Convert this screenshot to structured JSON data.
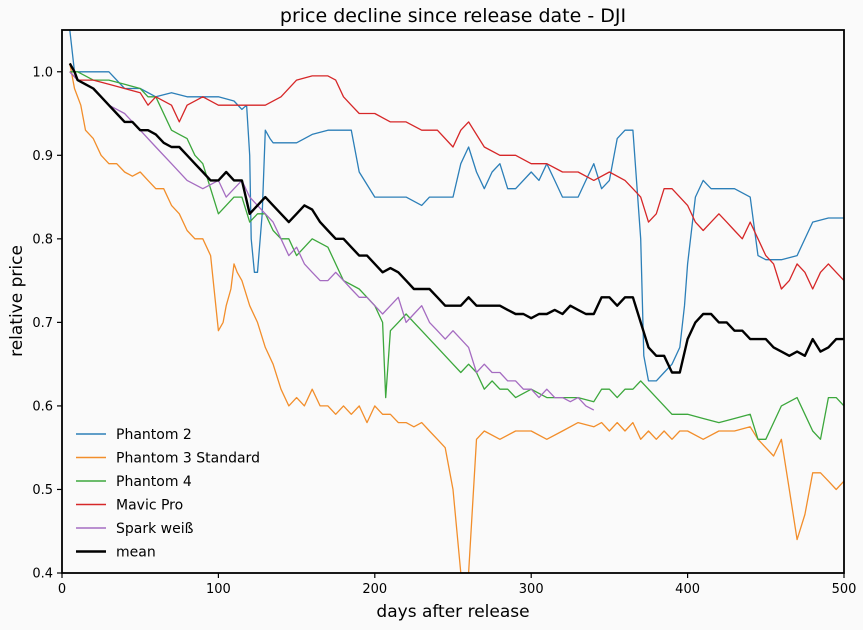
{
  "chart_data": {
    "type": "line",
    "title": "price decline since release date - DJI",
    "xlabel": "days after release",
    "ylabel": "relative price",
    "xlim": [
      0,
      500
    ],
    "ylim": [
      0.4,
      1.05
    ],
    "xticks": [
      "0",
      "100",
      "200",
      "300",
      "400",
      "500"
    ],
    "yticks": [
      "0.4",
      "0.5",
      "0.6",
      "0.7",
      "0.8",
      "0.9",
      "1.0"
    ],
    "grid": false,
    "legend_position": "bottom-left",
    "series": [
      {
        "name": "Phantom 2",
        "color": "#2c7fb8",
        "x": [
          5,
          8,
          12,
          30,
          40,
          50,
          60,
          70,
          80,
          100,
          110,
          115,
          118,
          120,
          121,
          123,
          125,
          128,
          130,
          133,
          135,
          140,
          150,
          160,
          170,
          180,
          185,
          190,
          200,
          210,
          220,
          230,
          235,
          240,
          250,
          255,
          260,
          265,
          270,
          275,
          280,
          285,
          290,
          300,
          305,
          310,
          315,
          320,
          330,
          335,
          340,
          345,
          350,
          355,
          360,
          365,
          370,
          372,
          375,
          380,
          385,
          390,
          395,
          398,
          400,
          405,
          410,
          415,
          420,
          425,
          430,
          440,
          445,
          450,
          460,
          470,
          480,
          490,
          500
        ],
        "y": [
          1.05,
          1.0,
          1.0,
          1.0,
          0.98,
          0.98,
          0.97,
          0.975,
          0.97,
          0.97,
          0.965,
          0.955,
          0.96,
          0.9,
          0.8,
          0.76,
          0.76,
          0.83,
          0.93,
          0.92,
          0.915,
          0.915,
          0.915,
          0.925,
          0.93,
          0.93,
          0.93,
          0.88,
          0.85,
          0.85,
          0.85,
          0.84,
          0.85,
          0.85,
          0.85,
          0.89,
          0.91,
          0.88,
          0.86,
          0.88,
          0.89,
          0.86,
          0.86,
          0.88,
          0.87,
          0.89,
          0.87,
          0.85,
          0.85,
          0.87,
          0.89,
          0.86,
          0.87,
          0.92,
          0.93,
          0.93,
          0.8,
          0.66,
          0.63,
          0.63,
          0.64,
          0.65,
          0.67,
          0.72,
          0.77,
          0.85,
          0.87,
          0.86,
          0.86,
          0.86,
          0.86,
          0.85,
          0.78,
          0.775,
          0.775,
          0.78,
          0.82,
          0.825,
          0.825
        ]
      },
      {
        "name": "Phantom 3 Standard",
        "color": "#f28e2b",
        "x": [
          5,
          8,
          12,
          15,
          20,
          25,
          30,
          35,
          40,
          45,
          50,
          55,
          60,
          65,
          70,
          75,
          80,
          85,
          90,
          95,
          100,
          103,
          105,
          108,
          110,
          112,
          115,
          120,
          125,
          130,
          135,
          140,
          145,
          150,
          155,
          160,
          165,
          170,
          175,
          180,
          185,
          190,
          195,
          200,
          205,
          210,
          215,
          220,
          225,
          230,
          235,
          240,
          245,
          250,
          255,
          258,
          260,
          265,
          270,
          280,
          290,
          300,
          310,
          320,
          330,
          340,
          345,
          350,
          355,
          360,
          365,
          370,
          375,
          380,
          385,
          390,
          395,
          400,
          410,
          420,
          430,
          440,
          445,
          450,
          455,
          460,
          465,
          470,
          475,
          480,
          485,
          490,
          495,
          500
        ],
        "y": [
          1.01,
          0.98,
          0.96,
          0.93,
          0.92,
          0.9,
          0.89,
          0.89,
          0.88,
          0.875,
          0.88,
          0.87,
          0.86,
          0.86,
          0.84,
          0.83,
          0.81,
          0.8,
          0.8,
          0.78,
          0.69,
          0.7,
          0.72,
          0.74,
          0.77,
          0.76,
          0.75,
          0.72,
          0.7,
          0.67,
          0.65,
          0.62,
          0.6,
          0.61,
          0.6,
          0.62,
          0.6,
          0.6,
          0.59,
          0.6,
          0.59,
          0.6,
          0.58,
          0.6,
          0.59,
          0.59,
          0.58,
          0.58,
          0.575,
          0.58,
          0.57,
          0.56,
          0.55,
          0.5,
          0.4,
          0.38,
          0.4,
          0.56,
          0.57,
          0.56,
          0.57,
          0.57,
          0.56,
          0.57,
          0.58,
          0.575,
          0.58,
          0.57,
          0.58,
          0.57,
          0.58,
          0.56,
          0.57,
          0.56,
          0.57,
          0.56,
          0.57,
          0.57,
          0.56,
          0.57,
          0.57,
          0.575,
          0.56,
          0.55,
          0.54,
          0.56,
          0.5,
          0.44,
          0.47,
          0.52,
          0.52,
          0.51,
          0.5,
          0.51
        ]
      },
      {
        "name": "Phantom 4",
        "color": "#3ca73c",
        "x": [
          5,
          10,
          20,
          30,
          40,
          50,
          55,
          60,
          70,
          75,
          80,
          85,
          90,
          95,
          100,
          105,
          110,
          115,
          120,
          125,
          130,
          135,
          140,
          145,
          150,
          160,
          170,
          180,
          190,
          195,
          200,
          205,
          207,
          210,
          215,
          220,
          225,
          230,
          235,
          240,
          245,
          250,
          255,
          260,
          265,
          270,
          275,
          280,
          285,
          290,
          300,
          310,
          320,
          330,
          340,
          345,
          350,
          355,
          360,
          365,
          370,
          380,
          390,
          400,
          410,
          420,
          430,
          440,
          445,
          450,
          455,
          460,
          470,
          475,
          480,
          485,
          490,
          495,
          500
        ],
        "y": [
          1.0,
          1.0,
          0.99,
          0.99,
          0.985,
          0.98,
          0.97,
          0.97,
          0.93,
          0.925,
          0.92,
          0.9,
          0.89,
          0.86,
          0.83,
          0.84,
          0.85,
          0.85,
          0.82,
          0.83,
          0.83,
          0.81,
          0.8,
          0.8,
          0.78,
          0.8,
          0.79,
          0.75,
          0.74,
          0.73,
          0.72,
          0.7,
          0.61,
          0.69,
          0.7,
          0.71,
          0.7,
          0.69,
          0.68,
          0.67,
          0.66,
          0.65,
          0.64,
          0.65,
          0.64,
          0.62,
          0.63,
          0.62,
          0.62,
          0.61,
          0.62,
          0.61,
          0.61,
          0.61,
          0.605,
          0.62,
          0.62,
          0.61,
          0.62,
          0.62,
          0.63,
          0.61,
          0.59,
          0.59,
          0.585,
          0.58,
          0.585,
          0.59,
          0.56,
          0.56,
          0.58,
          0.6,
          0.61,
          0.59,
          0.57,
          0.56,
          0.61,
          0.61,
          0.6
        ]
      },
      {
        "name": "Mavic Pro",
        "color": "#d62728",
        "x": [
          5,
          10,
          20,
          30,
          40,
          50,
          55,
          60,
          70,
          75,
          80,
          90,
          100,
          110,
          120,
          130,
          140,
          150,
          160,
          170,
          175,
          180,
          185,
          190,
          200,
          210,
          220,
          230,
          240,
          250,
          255,
          260,
          270,
          280,
          290,
          300,
          310,
          320,
          330,
          340,
          350,
          360,
          365,
          370,
          375,
          380,
          385,
          390,
          395,
          400,
          405,
          410,
          415,
          420,
          425,
          430,
          435,
          440,
          445,
          450,
          455,
          460,
          465,
          470,
          475,
          480,
          485,
          490,
          495,
          500
        ],
        "y": [
          1.0,
          0.99,
          0.99,
          0.985,
          0.98,
          0.975,
          0.96,
          0.97,
          0.96,
          0.94,
          0.96,
          0.97,
          0.96,
          0.96,
          0.96,
          0.96,
          0.97,
          0.99,
          0.995,
          0.995,
          0.99,
          0.97,
          0.96,
          0.95,
          0.95,
          0.94,
          0.94,
          0.93,
          0.93,
          0.91,
          0.93,
          0.94,
          0.91,
          0.9,
          0.9,
          0.89,
          0.89,
          0.88,
          0.88,
          0.87,
          0.88,
          0.87,
          0.86,
          0.85,
          0.82,
          0.83,
          0.86,
          0.86,
          0.85,
          0.84,
          0.82,
          0.81,
          0.82,
          0.83,
          0.82,
          0.81,
          0.8,
          0.82,
          0.8,
          0.78,
          0.77,
          0.74,
          0.75,
          0.77,
          0.76,
          0.74,
          0.76,
          0.77,
          0.76,
          0.75
        ]
      },
      {
        "name": "Spark weiß",
        "color": "#a56cc1",
        "x": [
          5,
          10,
          20,
          30,
          40,
          50,
          60,
          70,
          80,
          90,
          100,
          105,
          110,
          115,
          120,
          125,
          130,
          135,
          140,
          145,
          150,
          155,
          160,
          165,
          170,
          175,
          180,
          185,
          190,
          195,
          200,
          205,
          210,
          215,
          220,
          225,
          230,
          235,
          240,
          245,
          250,
          255,
          260,
          265,
          270,
          275,
          280,
          285,
          290,
          295,
          300,
          305,
          310,
          315,
          320,
          325,
          330,
          335,
          340
        ],
        "y": [
          1.0,
          0.99,
          0.98,
          0.96,
          0.95,
          0.93,
          0.91,
          0.89,
          0.87,
          0.86,
          0.87,
          0.85,
          0.86,
          0.87,
          0.85,
          0.84,
          0.83,
          0.82,
          0.8,
          0.78,
          0.79,
          0.77,
          0.76,
          0.75,
          0.75,
          0.76,
          0.75,
          0.74,
          0.73,
          0.73,
          0.72,
          0.71,
          0.72,
          0.73,
          0.7,
          0.71,
          0.72,
          0.7,
          0.69,
          0.68,
          0.69,
          0.68,
          0.67,
          0.64,
          0.65,
          0.64,
          0.64,
          0.63,
          0.63,
          0.62,
          0.62,
          0.61,
          0.62,
          0.61,
          0.61,
          0.605,
          0.61,
          0.6,
          0.595
        ]
      },
      {
        "name": "mean",
        "color": "#000000",
        "x": [
          5,
          8,
          10,
          15,
          20,
          25,
          30,
          35,
          40,
          45,
          50,
          55,
          60,
          65,
          70,
          75,
          80,
          85,
          90,
          95,
          100,
          105,
          110,
          115,
          120,
          125,
          130,
          135,
          140,
          145,
          150,
          155,
          160,
          165,
          170,
          175,
          180,
          185,
          190,
          195,
          200,
          205,
          210,
          215,
          220,
          225,
          230,
          235,
          240,
          245,
          250,
          255,
          260,
          265,
          270,
          275,
          280,
          285,
          290,
          295,
          300,
          305,
          310,
          315,
          320,
          325,
          330,
          335,
          340,
          345,
          350,
          355,
          360,
          365,
          370,
          375,
          380,
          385,
          390,
          395,
          400,
          405,
          410,
          415,
          420,
          425,
          430,
          435,
          440,
          445,
          450,
          455,
          460,
          465,
          470,
          475,
          480,
          485,
          490,
          495,
          500
        ],
        "y": [
          1.01,
          1.0,
          0.99,
          0.985,
          0.98,
          0.97,
          0.96,
          0.95,
          0.94,
          0.94,
          0.93,
          0.93,
          0.925,
          0.915,
          0.91,
          0.91,
          0.9,
          0.89,
          0.88,
          0.87,
          0.87,
          0.88,
          0.87,
          0.87,
          0.83,
          0.84,
          0.85,
          0.84,
          0.83,
          0.82,
          0.83,
          0.84,
          0.835,
          0.82,
          0.81,
          0.8,
          0.8,
          0.79,
          0.78,
          0.78,
          0.77,
          0.76,
          0.765,
          0.76,
          0.75,
          0.74,
          0.74,
          0.74,
          0.73,
          0.72,
          0.72,
          0.72,
          0.73,
          0.72,
          0.72,
          0.72,
          0.72,
          0.715,
          0.71,
          0.71,
          0.705,
          0.71,
          0.71,
          0.715,
          0.71,
          0.72,
          0.715,
          0.71,
          0.71,
          0.73,
          0.73,
          0.72,
          0.73,
          0.73,
          0.7,
          0.67,
          0.66,
          0.66,
          0.64,
          0.64,
          0.68,
          0.7,
          0.71,
          0.71,
          0.7,
          0.7,
          0.69,
          0.69,
          0.68,
          0.68,
          0.68,
          0.67,
          0.665,
          0.66,
          0.665,
          0.66,
          0.68,
          0.665,
          0.67,
          0.68,
          0.68
        ]
      }
    ]
  }
}
